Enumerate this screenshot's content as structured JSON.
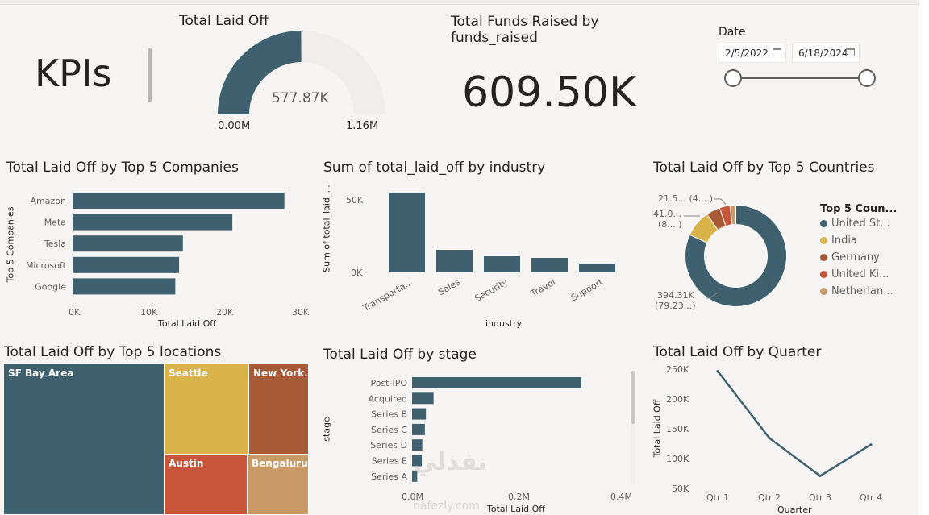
{
  "colors": {
    "primary": "#3f616f",
    "gold": "#d9b34a",
    "rust": "#a85a37",
    "red": "#c8543a",
    "tan": "#c99a66",
    "track": "#efeeec"
  },
  "kpis_label": "KPIs",
  "gauge": {
    "title": "Total Laid Off",
    "value_label": "577.87K",
    "min_label": "0.00M",
    "max_label": "1.16M",
    "value": 577.87,
    "max": 1160
  },
  "funds": {
    "title_line1": "Total Funds Raised by",
    "title_line2": "funds_raised",
    "value": "609.50K"
  },
  "date_filter": {
    "label": "Date",
    "start": "2/5/2022",
    "end": "6/18/2024",
    "start_icon": "calendar-icon",
    "end_icon": "calendar-icon"
  },
  "companies": {
    "title": "Total Laid Off by Top 5 Companies",
    "ylabel": "Top 5 Companies",
    "xlabel": "Total Laid Off",
    "ticks": [
      "0K",
      "10K",
      "20K",
      "30K"
    ]
  },
  "industry": {
    "title": "Sum of total_laid_off by industry",
    "ylabel": "Sum of total_laid_...",
    "xlabel": "industry",
    "ticks": [
      "50K",
      "0K"
    ]
  },
  "countries": {
    "title": "Total Laid Off by Top 5 Countries",
    "legend_title": "Top 5 Coun...",
    "labels": [
      {
        "line1": "21.5...",
        "line2": "(4....)"
      },
      {
        "line1": "41.0...",
        "line2": "(8....)"
      },
      {
        "line1": "394.31K",
        "line2": "(79.23...)"
      }
    ]
  },
  "locations": {
    "title": "Total Laid Off by Top 5 locations",
    "tiles": [
      "SF Bay Area",
      "Seattle",
      "New York...",
      "Austin",
      "Bengaluru"
    ]
  },
  "stage": {
    "title": "Total Laid Off by stage",
    "ylabel": "stage",
    "xlabel": "Total Laid Off",
    "ticks": [
      "0.0M",
      "0.2M",
      "0.4M"
    ]
  },
  "quarter": {
    "title": "Total Laid Off by Quarter",
    "ylabel": "Total Laid Off",
    "xlabel": "Quarter",
    "ticks": [
      "250K",
      "200K",
      "150K",
      "100K",
      "50K"
    ]
  },
  "watermark": {
    "main": "نفذلي",
    "sub": "nafezly.com"
  },
  "chart_data": [
    {
      "type": "bar",
      "title": "Total Laid Off by Top 5 Companies",
      "orientation": "horizontal",
      "categories": [
        "Amazon",
        "Meta",
        "Tesla",
        "Microsoft",
        "Google"
      ],
      "values": [
        27840,
        21000,
        14500,
        14000,
        13500
      ],
      "xlabel": "Total Laid Off",
      "ylabel": "Top 5 Companies",
      "xlim": [
        0,
        30000
      ]
    },
    {
      "type": "bar",
      "title": "Sum of total_laid_off by industry",
      "categories": [
        "Transporta...",
        "Sales",
        "Security",
        "Travel",
        "Support"
      ],
      "values": [
        49500,
        14000,
        10000,
        9000,
        5500
      ],
      "xlabel": "industry",
      "ylabel": "Sum of total_laid_...",
      "ylim": [
        0,
        55000
      ]
    },
    {
      "type": "pie",
      "title": "Total Laid Off by Top 5 Countries",
      "donut": true,
      "categories": [
        "United St...",
        "India",
        "Germany",
        "United Ki...",
        "Netherlan..."
      ],
      "values": [
        394310,
        41000,
        21500,
        16000,
        9000
      ],
      "legend_title": "Top 5 Coun..."
    },
    {
      "type": "heatmap",
      "subtype": "treemap",
      "title": "Total Laid Off by Top 5 locations",
      "categories": [
        "SF Bay Area",
        "Seattle",
        "New York...",
        "Austin",
        "Bengaluru"
      ],
      "values": [
        150000,
        60000,
        37000,
        32000,
        24000
      ]
    },
    {
      "type": "bar",
      "title": "Total Laid Off by stage",
      "orientation": "horizontal",
      "categories": [
        "Post-IPO",
        "Acquired",
        "Series B",
        "Series C",
        "Series D",
        "Series E",
        "Series A"
      ],
      "values": [
        330000,
        42000,
        27000,
        25000,
        20000,
        19000,
        10000
      ],
      "xlabel": "Total Laid Off",
      "ylabel": "stage",
      "xlim": [
        0,
        400000
      ]
    },
    {
      "type": "line",
      "title": "Total Laid Off by Quarter",
      "categories": [
        "Qtr 1",
        "Qtr 2",
        "Qtr 3",
        "Qtr 4"
      ],
      "values": [
        248000,
        135000,
        71000,
        124000
      ],
      "xlabel": "Quarter",
      "ylabel": "Total Laid Off",
      "ylim": [
        50000,
        250000
      ]
    }
  ]
}
